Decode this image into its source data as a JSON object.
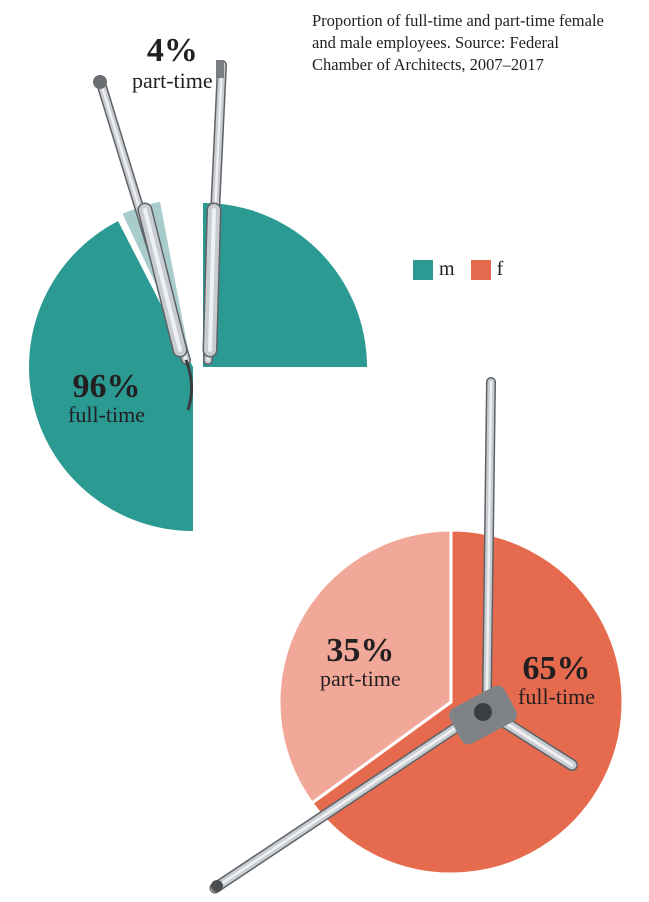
{
  "caption": "Proportion of full-time and part-time female and male employees. Source: Federal Chamber of Architects, 2007–2017",
  "legend": [
    {
      "label": "m",
      "color": "#2a9a93"
    },
    {
      "label": "f",
      "color": "#e66b4e"
    }
  ],
  "chart_data": [
    {
      "type": "pie",
      "series_label": "m",
      "slices": [
        {
          "category": "part-time",
          "value": 4,
          "label": "4%",
          "color": "#a8cccb"
        },
        {
          "category": "full-time",
          "value": 96,
          "label": "96%",
          "color": "#2a9a93"
        }
      ]
    },
    {
      "type": "pie",
      "series_label": "f",
      "slices": [
        {
          "category": "full-time",
          "value": 65,
          "label": "65%",
          "color": "#e66b4e"
        },
        {
          "category": "part-time",
          "value": 35,
          "label": "35%",
          "color": "#f2a898"
        }
      ]
    }
  ]
}
